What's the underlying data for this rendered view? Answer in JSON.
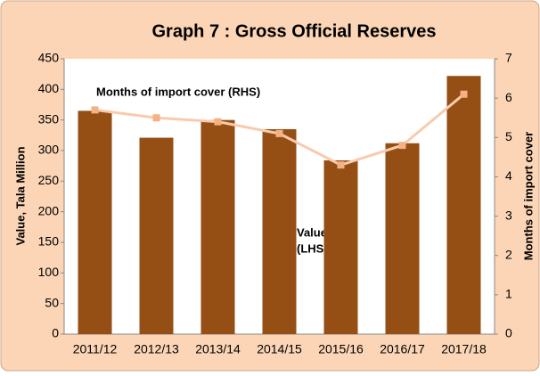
{
  "chart_data": {
    "type": "bar",
    "title": "Graph 7 : Gross Official Reserves",
    "y_label": "Value, Tala Million",
    "y2_label": "Months of import cover",
    "categories": [
      "2011/12",
      "2012/13",
      "2013/14",
      "2014/15",
      "2015/16",
      "2016/17",
      "2017/18"
    ],
    "series": [
      {
        "type": "bar",
        "color": "#954f14",
        "values": [
          365,
          321,
          350,
          335,
          284,
          312,
          422
        ]
      },
      {
        "type": "line",
        "axis": "y2",
        "color": "#f8cbad",
        "marker_color": "#f4b183",
        "values": [
          5.7,
          5.5,
          5.4,
          5.1,
          4.3,
          4.8,
          6.1
        ]
      }
    ],
    "annotations": [
      "Months of import cover (RHS)",
      "Value",
      "(LHS)"
    ],
    "ylim": [
      0,
      450
    ],
    "yticks": [
      0,
      50,
      100,
      150,
      200,
      250,
      300,
      350,
      400,
      450
    ],
    "y2lim": [
      0,
      7
    ],
    "y2ticks": [
      0,
      1,
      2,
      3,
      4,
      5,
      6,
      7
    ]
  }
}
